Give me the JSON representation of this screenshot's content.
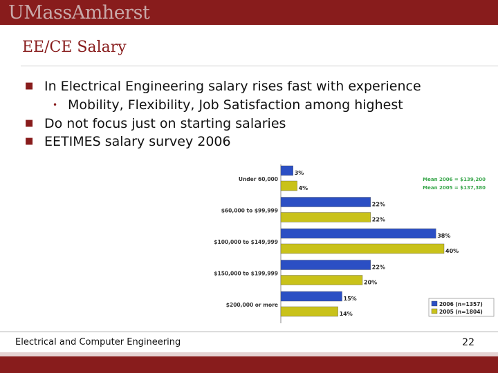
{
  "header": {
    "logo": "UMassAmherst"
  },
  "slide": {
    "title": "EE/CE Salary",
    "bullets": [
      "In Electrical Engineering salary rises fast with experience",
      "Mobility, Flexibility, Job Satisfaction among highest",
      "Do not focus just on starting salaries",
      "EETIMES salary survey 2006"
    ]
  },
  "footer": {
    "text": "Electrical and Computer Engineering",
    "page": "22"
  },
  "colors": {
    "maroon": "#881c1c",
    "series_2006": "#2b4fc4",
    "series_2005": "#c9c21a",
    "mean_text": "#37a64a"
  },
  "chart_data": {
    "type": "bar",
    "orientation": "horizontal",
    "categories": [
      "Under 60,000",
      "$60,000 to $99,999",
      "$100,000 to $149,999",
      "$150,000 to $199,999",
      "$200,000 or more"
    ],
    "series": [
      {
        "name": "2006 (n=1357)",
        "values": [
          3,
          22,
          38,
          22,
          15
        ],
        "labels": [
          "3%",
          "22%",
          "38%",
          "22%",
          "15%"
        ]
      },
      {
        "name": "2005 (n=1804)",
        "values": [
          4,
          22,
          40,
          20,
          14
        ],
        "labels": [
          "4%",
          "22%",
          "40%",
          "20%",
          "14%"
        ]
      }
    ],
    "annotations": [
      "Mean 2006 = $139,200",
      "Mean 2005 = $137,380"
    ],
    "legend_position": "bottom-right",
    "xlim": [
      0,
      40
    ]
  }
}
